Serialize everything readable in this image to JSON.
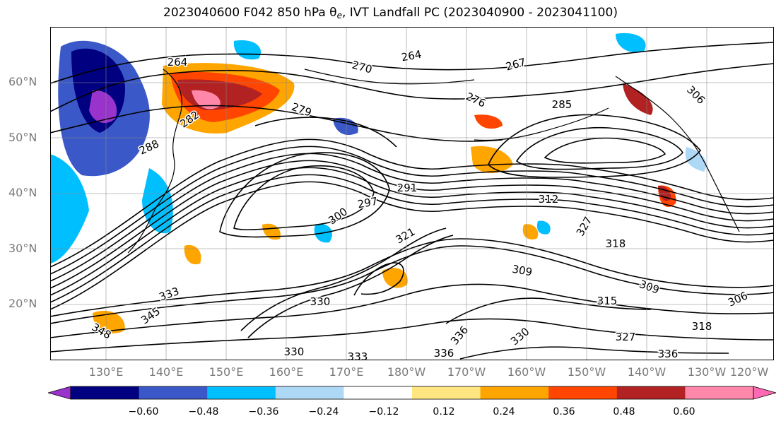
{
  "title": {
    "prefix": "2023040600 F042 850 hPa θ",
    "subscript": "e",
    "suffix": ", IVT Landfall PC (2023040900 - 2023041100)"
  },
  "lat_labels": [
    "60°N",
    "50°N",
    "40°N",
    "30°N",
    "20°N"
  ],
  "lon_labels": [
    "130°E",
    "140°E",
    "150°E",
    "160°E",
    "170°E",
    "180°W",
    "170°W",
    "160°W",
    "150°W",
    "140°W",
    "130°W",
    "120°W"
  ],
  "contour_labels": [
    "264",
    "264",
    "267",
    "270",
    "276",
    "279",
    "282",
    "285",
    "288",
    "291",
    "297",
    "300",
    "306",
    "306",
    "309",
    "309",
    "312",
    "315",
    "318",
    "318",
    "321",
    "327",
    "327",
    "330",
    "330",
    "330",
    "333",
    "333",
    "336",
    "336",
    "336",
    "345",
    "348"
  ],
  "colorbar": {
    "ticks": [
      "−0.60",
      "−0.48",
      "−0.36",
      "−0.24",
      "−0.12",
      "0.12",
      "0.24",
      "0.36",
      "0.48",
      "0.60"
    ],
    "colors": [
      "#9933cc",
      "#000080",
      "#3a58c8",
      "#00bfff",
      "#add8f6",
      "#ffffff",
      "#ffe680",
      "#ffa500",
      "#ff4500",
      "#b22222",
      "#ff88aa",
      "#ff69b4"
    ]
  }
}
